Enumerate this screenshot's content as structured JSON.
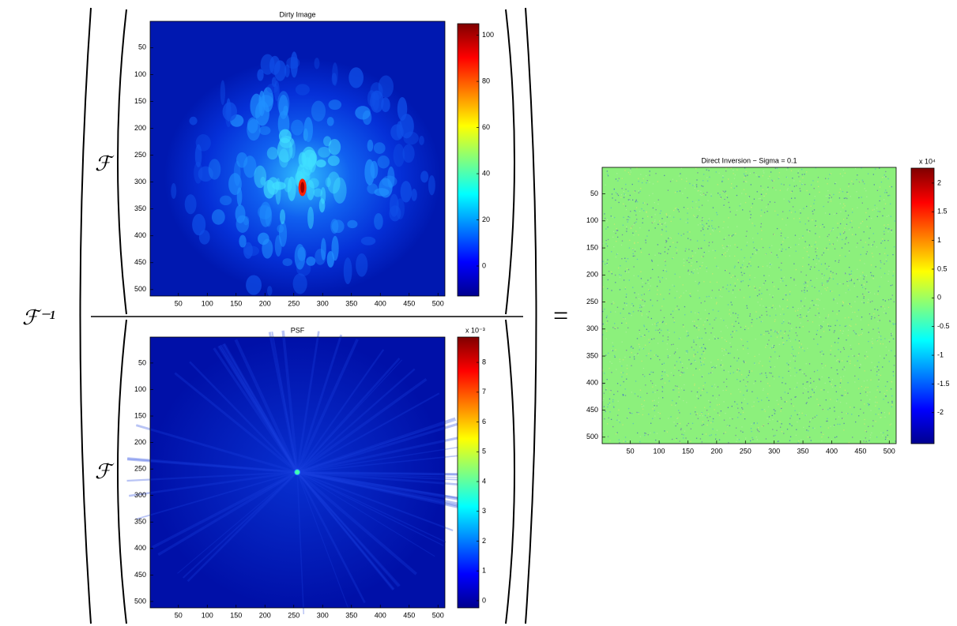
{
  "equation": {
    "inverse": "ℱ⁻¹",
    "numerator_op": "ℱ",
    "denominator_op": "ℱ",
    "equals": "="
  },
  "chart_data": [
    {
      "type": "heatmap",
      "title": "Dirty Image",
      "xlim": [
        1,
        512
      ],
      "ylim": [
        512,
        1
      ],
      "xticks": [
        50,
        100,
        150,
        200,
        250,
        300,
        350,
        400,
        450,
        500
      ],
      "yticks": [
        50,
        100,
        150,
        200,
        250,
        300,
        350,
        400,
        450,
        500
      ],
      "clim": [
        -13,
        105
      ],
      "cticks": [
        0,
        20,
        40,
        60,
        80,
        100
      ]
    },
    {
      "type": "heatmap",
      "title": "PSF",
      "xlim": [
        1,
        512
      ],
      "ylim": [
        512,
        1
      ],
      "xticks": [
        50,
        100,
        150,
        200,
        250,
        300,
        350,
        400,
        450,
        500
      ],
      "yticks": [
        50,
        100,
        150,
        200,
        250,
        300,
        350,
        400,
        450,
        500
      ],
      "clim": [
        -0.24,
        8.85
      ],
      "cticks": [
        0,
        1,
        2,
        3,
        4,
        5,
        6,
        7,
        8
      ],
      "cscale_label": "x 10⁻³"
    },
    {
      "type": "heatmap",
      "title": "Direct Inversion − Sigma = 0.1",
      "xlim": [
        1,
        512
      ],
      "ylim": [
        512,
        1
      ],
      "xticks": [
        50,
        100,
        150,
        200,
        250,
        300,
        350,
        400,
        450,
        500
      ],
      "yticks": [
        50,
        100,
        150,
        200,
        250,
        300,
        350,
        400,
        450,
        500
      ],
      "clim": [
        -2.54,
        2.26
      ],
      "cticks": [
        -2,
        -1.5,
        -1,
        -0.5,
        0,
        0.5,
        1,
        1.5,
        2
      ],
      "cscale_label": "x 10⁴"
    }
  ]
}
